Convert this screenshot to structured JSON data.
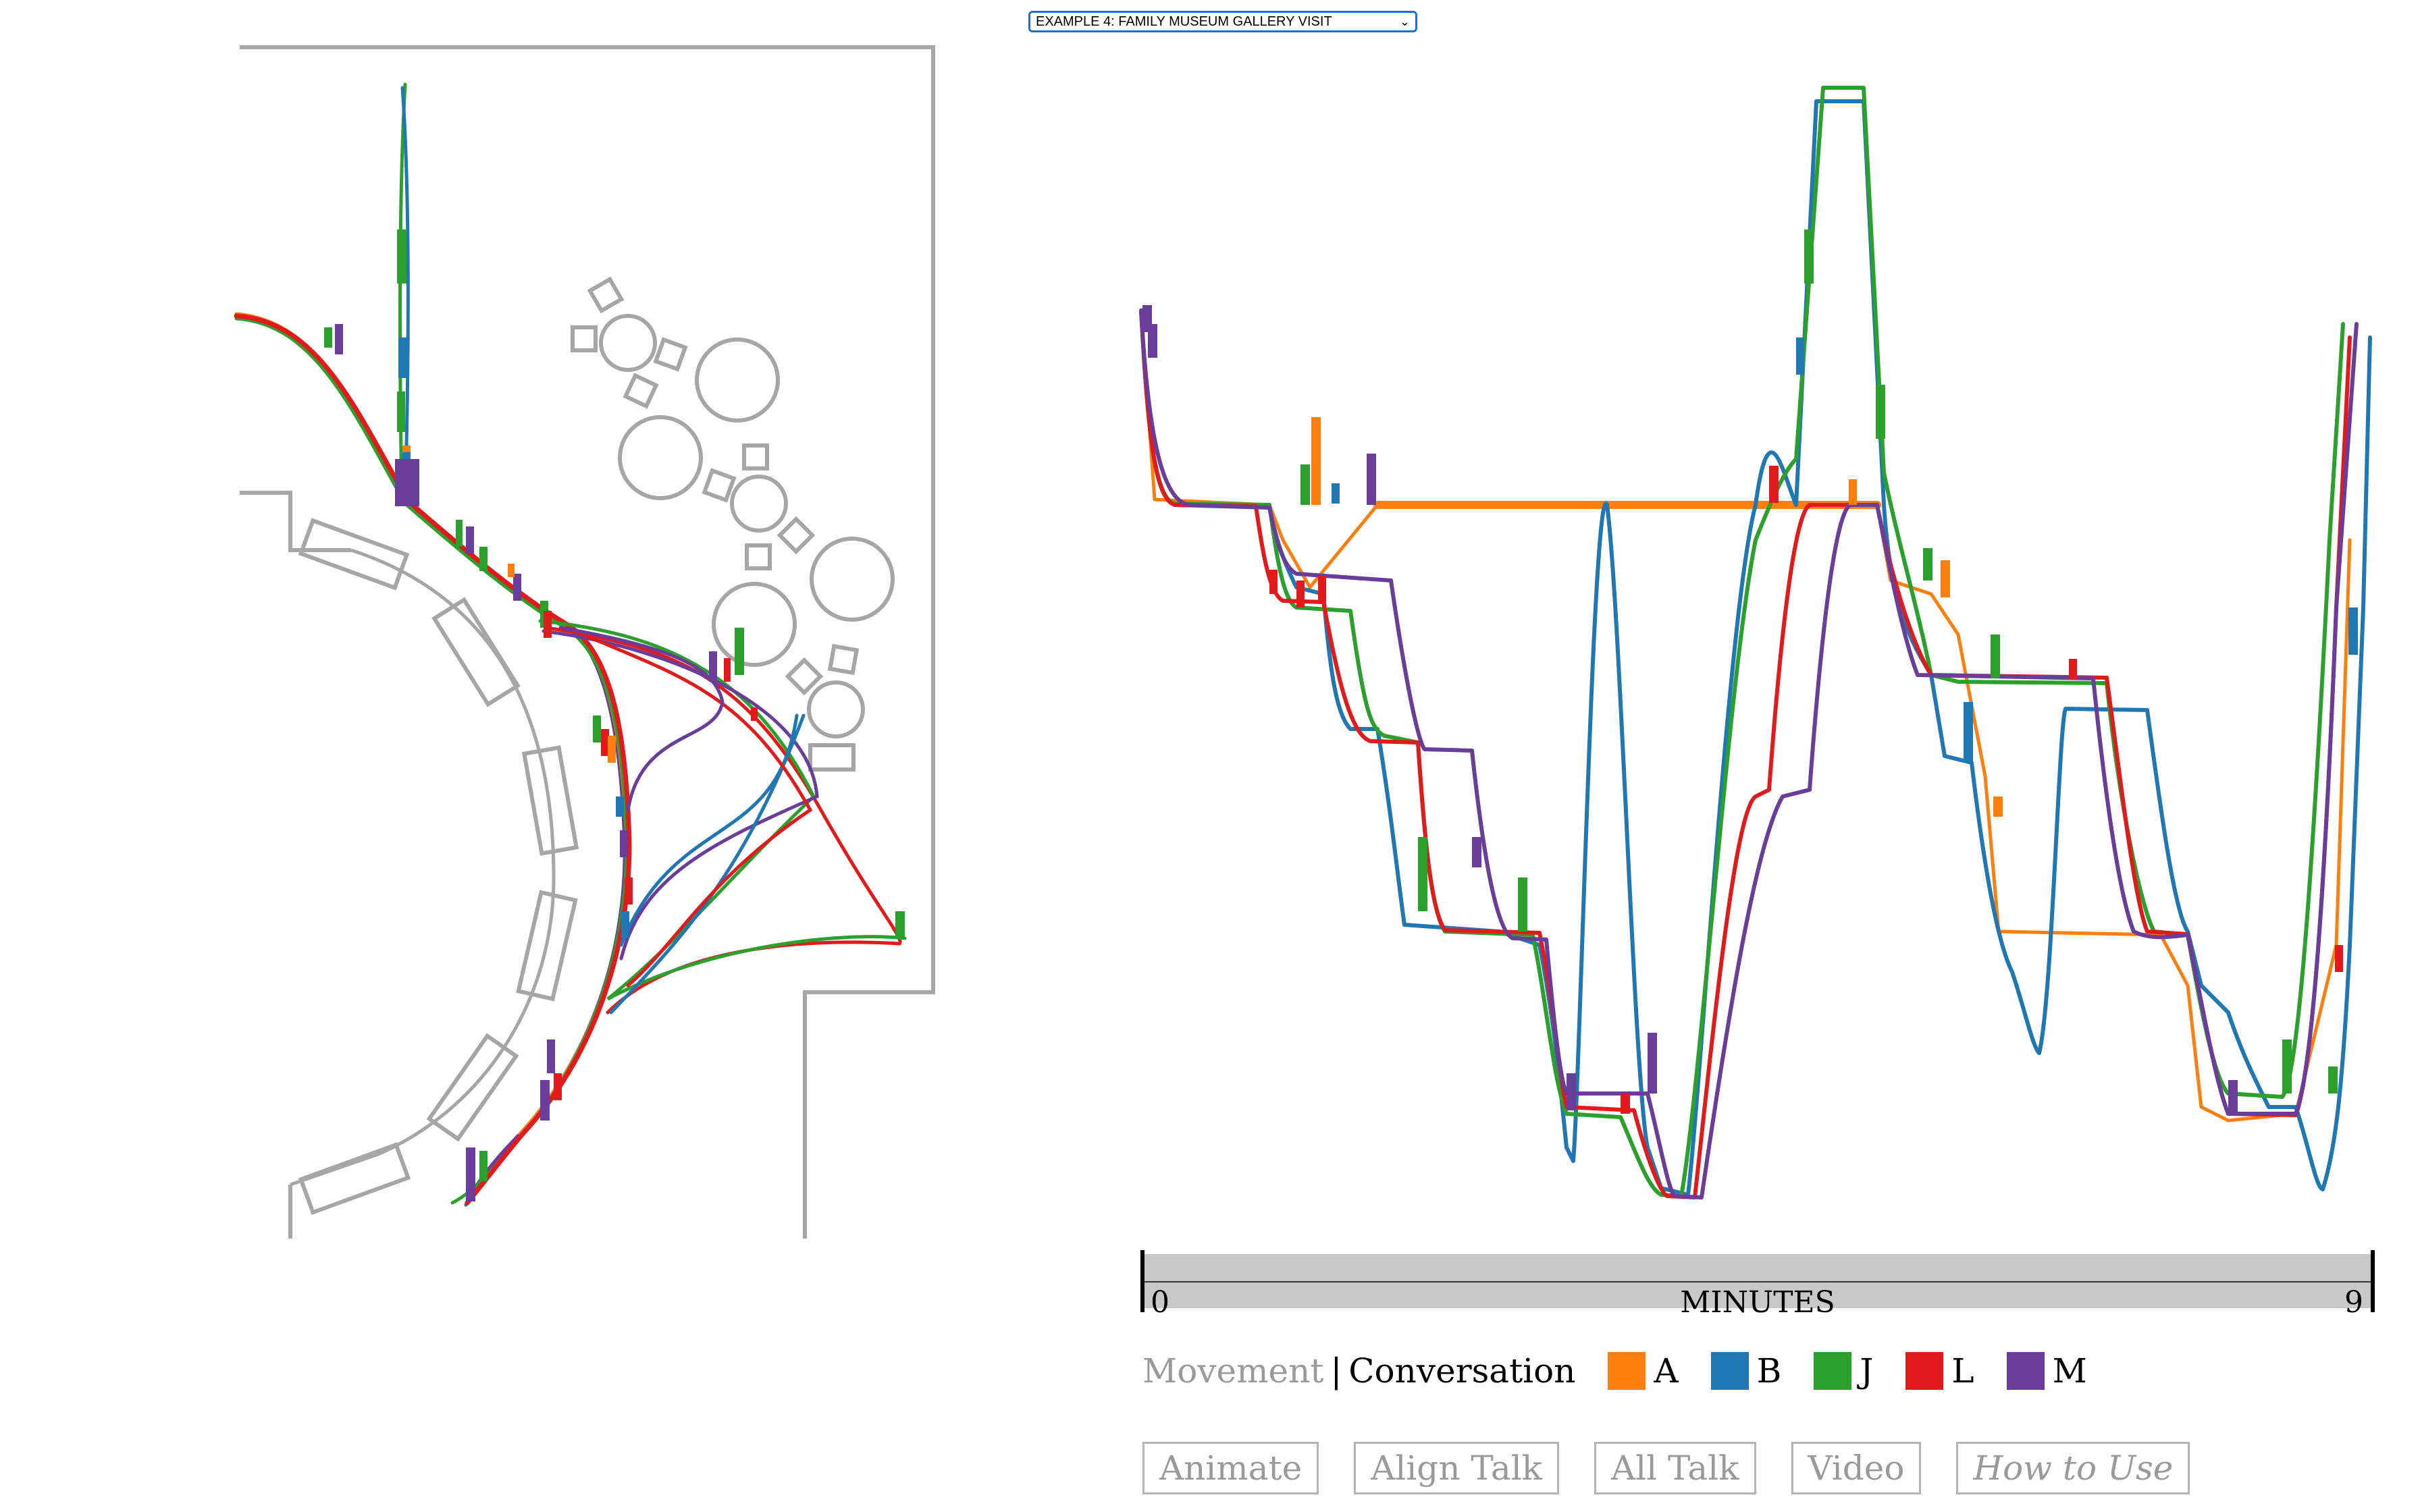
{
  "example_select": {
    "label": "EXAMPLE 4: FAMILY MUSEUM GALLERY VISIT"
  },
  "timeline": {
    "label": "MINUTES",
    "start": "0",
    "end": "9"
  },
  "modes": {
    "movement": "Movement",
    "separator": "|",
    "conversation": "Conversation"
  },
  "legend": [
    {
      "id": "A",
      "label": "A",
      "color": "#ff7f0e"
    },
    {
      "id": "B",
      "label": "B",
      "color": "#1f77b4"
    },
    {
      "id": "J",
      "label": "J",
      "color": "#2ca02c"
    },
    {
      "id": "L",
      "label": "L",
      "color": "#e31a1c"
    },
    {
      "id": "M",
      "label": "M",
      "color": "#6a3d9a"
    }
  ],
  "buttons": {
    "animate": "Animate",
    "align_talk": "Align Talk",
    "all_talk": "All Talk",
    "video": "Video",
    "how_to_use": "How to Use"
  },
  "colors": {
    "floorplan": "#a6a6a6",
    "timeline_bar": "#c8c8c8"
  }
}
